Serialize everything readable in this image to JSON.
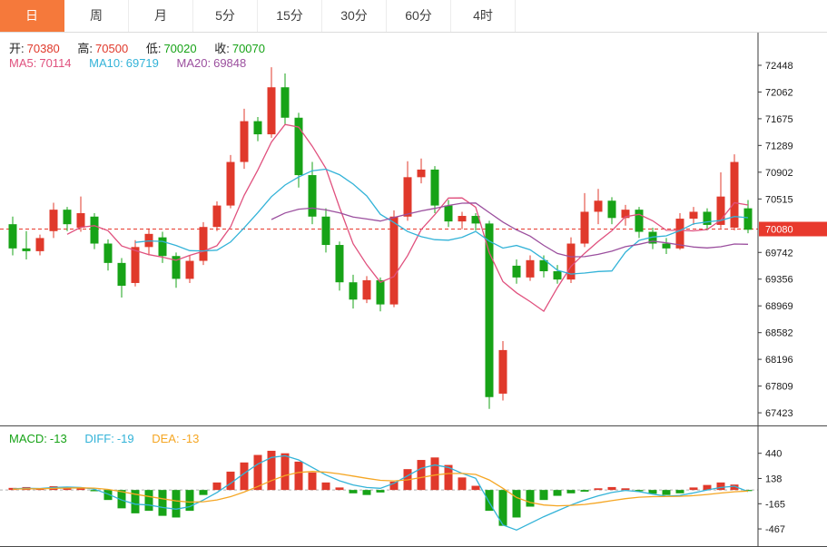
{
  "tabs": {
    "items": [
      {
        "label": "日",
        "active": true
      },
      {
        "label": "周",
        "active": false
      },
      {
        "label": "月",
        "active": false
      },
      {
        "label": "5分",
        "active": false
      },
      {
        "label": "15分",
        "active": false
      },
      {
        "label": "30分",
        "active": false
      },
      {
        "label": "60分",
        "active": false
      },
      {
        "label": "4时",
        "active": false
      }
    ]
  },
  "ohlc": {
    "open_label": "开:",
    "open_value": "70380",
    "high_label": "高:",
    "high_value": "70500",
    "low_label": "低:",
    "low_value": "70020",
    "close_label": "收:",
    "close_value": "70070"
  },
  "ma": {
    "ma5_label": "MA5:",
    "ma5_value": "70114",
    "ma10_label": "MA10:",
    "ma10_value": "69719",
    "ma20_label": "MA20:",
    "ma20_value": "69848"
  },
  "macd_info": {
    "macd_label": "MACD:",
    "macd_value": "-13",
    "diff_label": "DIFF:",
    "diff_value": "-19",
    "dea_label": "DEA:",
    "dea_value": "-13"
  },
  "price_marker": "70080",
  "colors": {
    "up": "#e0392b",
    "down": "#17a317",
    "tab_active_bg": "#f5793b",
    "price_marker_bg": "#e8392d",
    "ma5": "#e0517e",
    "ma10": "#33b3d8",
    "ma20": "#9b4f9e",
    "diff": "#33b3d8",
    "dea": "#f5a623",
    "axis": "#3a3a3a",
    "zero_line": "#b0b0b0"
  },
  "chart_data": {
    "type": "candlestick",
    "title": "Daily K-line with MA overlays and MACD sub-chart",
    "main": {
      "ylim": [
        67240,
        72920
      ],
      "y_axis_labels": [
        72448,
        72062,
        71675,
        71289,
        70902,
        70515,
        69742,
        69356,
        68969,
        68582,
        68196,
        67809,
        67423
      ],
      "current_price": 70080,
      "last_ohlc": {
        "open": 70380,
        "high": 70500,
        "low": 70020,
        "close": 70070
      },
      "overlays": [
        {
          "name": "MA5",
          "period": 5,
          "color_key": "ma5",
          "display_value": 70114
        },
        {
          "name": "MA10",
          "period": 10,
          "color_key": "ma10",
          "display_value": 69719
        },
        {
          "name": "MA20",
          "period": 20,
          "color_key": "ma20",
          "display_value": 69848
        }
      ],
      "candles": [
        [
          70150,
          70260,
          69700,
          69800
        ],
        [
          69800,
          70050,
          69640,
          69760
        ],
        [
          69760,
          70000,
          69700,
          69950
        ],
        [
          70050,
          70460,
          69950,
          70360
        ],
        [
          70360,
          70400,
          70050,
          70150
        ],
        [
          70100,
          70550,
          70040,
          70310
        ],
        [
          70260,
          70310,
          69790,
          69870
        ],
        [
          69870,
          69930,
          69480,
          69590
        ],
        [
          69590,
          69660,
          69090,
          69260
        ],
        [
          69300,
          69920,
          69250,
          69820
        ],
        [
          69820,
          70090,
          69700,
          70010
        ],
        [
          69960,
          70040,
          69590,
          69690
        ],
        [
          69690,
          69740,
          69230,
          69360
        ],
        [
          69360,
          69700,
          69300,
          69620
        ],
        [
          69620,
          70180,
          69560,
          70110
        ],
        [
          70110,
          70480,
          70050,
          70420
        ],
        [
          70420,
          71150,
          70380,
          71050
        ],
        [
          71050,
          71820,
          70950,
          71640
        ],
        [
          71640,
          71700,
          71350,
          71450
        ],
        [
          71450,
          72420,
          71400,
          72130
        ],
        [
          72130,
          72330,
          71580,
          71690
        ],
        [
          71690,
          71760,
          70680,
          70860
        ],
        [
          70860,
          71050,
          70150,
          70260
        ],
        [
          70260,
          70380,
          69740,
          69850
        ],
        [
          69850,
          69900,
          69190,
          69310
        ],
        [
          69310,
          69420,
          68930,
          69060
        ],
        [
          69060,
          69400,
          69010,
          69340
        ],
        [
          69340,
          69380,
          68890,
          68990
        ],
        [
          68990,
          70350,
          68950,
          70260
        ],
        [
          70260,
          71060,
          70200,
          70830
        ],
        [
          70830,
          71100,
          70740,
          70940
        ],
        [
          70940,
          70990,
          70310,
          70420
        ],
        [
          70420,
          70500,
          70110,
          70190
        ],
        [
          70190,
          70330,
          70080,
          70270
        ],
        [
          70270,
          70310,
          70060,
          70160
        ],
        [
          70160,
          70200,
          67480,
          67650
        ],
        [
          67700,
          68460,
          67600,
          68330
        ],
        [
          69550,
          69640,
          69290,
          69380
        ],
        [
          69380,
          69700,
          69330,
          69630
        ],
        [
          69630,
          69700,
          69380,
          69470
        ],
        [
          69470,
          69560,
          69290,
          69350
        ],
        [
          69350,
          69960,
          69300,
          69870
        ],
        [
          69870,
          70600,
          69820,
          70330
        ],
        [
          70330,
          70660,
          70150,
          70490
        ],
        [
          70490,
          70540,
          70150,
          70240
        ],
        [
          70240,
          70430,
          70130,
          70360
        ],
        [
          70360,
          70400,
          69950,
          70040
        ],
        [
          70040,
          70100,
          69790,
          69870
        ],
        [
          69870,
          69950,
          69720,
          69800
        ],
        [
          69800,
          70310,
          69780,
          70230
        ],
        [
          70230,
          70400,
          70140,
          70330
        ],
        [
          70330,
          70380,
          70060,
          70140
        ],
        [
          70140,
          70900,
          70090,
          70550
        ],
        [
          70100,
          71160,
          70060,
          71050
        ],
        [
          70380,
          70500,
          70020,
          70070
        ]
      ]
    },
    "macd": {
      "ylim": [
        -673,
        763
      ],
      "y_axis_labels": [
        440,
        138,
        -165,
        -467
      ],
      "hist": [
        25,
        35,
        20,
        45,
        30,
        25,
        -15,
        -120,
        -220,
        -280,
        -250,
        -310,
        -330,
        -250,
        -60,
        90,
        220,
        330,
        420,
        470,
        440,
        340,
        210,
        90,
        30,
        -40,
        -60,
        -30,
        100,
        250,
        360,
        390,
        300,
        150,
        50,
        -250,
        -430,
        -330,
        -200,
        -120,
        -70,
        -40,
        -20,
        20,
        35,
        20,
        -15,
        -45,
        -60,
        -40,
        30,
        60,
        90,
        65,
        -13
      ],
      "diff": [
        15,
        20,
        18,
        30,
        35,
        30,
        10,
        -50,
        -120,
        -170,
        -180,
        -210,
        -230,
        -200,
        -120,
        -30,
        80,
        200,
        310,
        390,
        410,
        360,
        270,
        180,
        110,
        60,
        30,
        20,
        80,
        170,
        260,
        300,
        270,
        200,
        140,
        -150,
        -420,
        -480,
        -400,
        -320,
        -250,
        -180,
        -120,
        -70,
        -30,
        -5,
        -20,
        -50,
        -75,
        -65,
        -35,
        0,
        30,
        45,
        -19
      ],
      "dea": [
        10,
        13,
        15,
        19,
        23,
        25,
        22,
        7,
        -20,
        -51,
        -78,
        -105,
        -131,
        -145,
        -141,
        -119,
        -80,
        -25,
        42,
        112,
        172,
        210,
        222,
        214,
        193,
        167,
        140,
        116,
        109,
        121,
        149,
        179,
        197,
        198,
        186,
        120,
        20,
        -90,
        -150,
        -180,
        -190,
        -185,
        -174,
        -153,
        -128,
        -104,
        -87,
        -80,
        -79,
        -76,
        -68,
        -54,
        -37,
        -21,
        -13
      ]
    }
  }
}
